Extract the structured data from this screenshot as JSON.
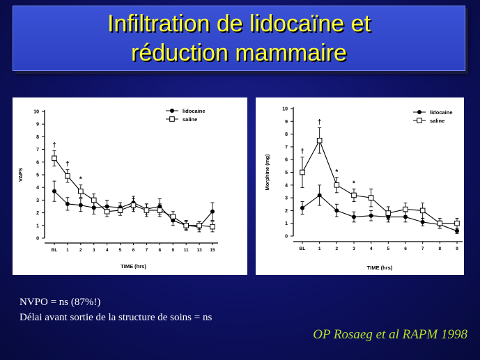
{
  "slide": {
    "title_line1": "Infiltration de lidocaïne et",
    "title_line2": "réduction mammaire",
    "note1": "NVPO = ns (87%!)",
    "note2": "Délai avant sortie de la structure de soins = ns",
    "citation": "OP Rosaeg et al RAPM 1998",
    "colors": {
      "background": "#0d1060",
      "title_box": "#2c40c2",
      "title_text": "#ffff33",
      "citation": "#b8e02a"
    }
  },
  "chart_data": [
    {
      "type": "line",
      "xlabel": "TIME (hrs)",
      "ylabel": "VAPS",
      "ylim": [
        0,
        10
      ],
      "yticks": [
        "0",
        "1",
        "2",
        "3",
        "4",
        "5",
        "6",
        "7",
        "8",
        "9",
        "10"
      ],
      "categories": [
        "BL",
        "1",
        "2",
        "3",
        "4",
        "5",
        "6",
        "7",
        "8",
        "9",
        "11",
        "13",
        "15"
      ],
      "legend_position": "top-right",
      "grid": false,
      "series": [
        {
          "name": "lidocaine",
          "marker": "filled-circle",
          "values": [
            3.7,
            2.7,
            2.6,
            2.4,
            2.5,
            2.4,
            2.8,
            2.3,
            2.5,
            1.4,
            1.0,
            0.9,
            2.1
          ],
          "errors": [
            0.8,
            0.5,
            0.5,
            0.5,
            0.5,
            0.4,
            0.5,
            0.4,
            0.6,
            0.4,
            0.4,
            0.4,
            0.7
          ]
        },
        {
          "name": "saline",
          "marker": "open-square",
          "values": [
            6.3,
            4.9,
            3.7,
            3.0,
            2.1,
            2.2,
            2.6,
            2.2,
            2.2,
            1.7,
            1.0,
            1.0,
            0.9
          ],
          "errors": [
            0.6,
            0.5,
            0.5,
            0.5,
            0.4,
            0.4,
            0.5,
            0.5,
            0.5,
            0.4,
            0.3,
            0.3,
            0.4
          ]
        }
      ],
      "annotations": [
        {
          "category": "BL",
          "text": "†"
        },
        {
          "category": "1",
          "text": "†"
        },
        {
          "category": "2",
          "text": "*"
        }
      ]
    },
    {
      "type": "line",
      "xlabel": "TIME (hrs)",
      "ylabel": "Morphine (mg)",
      "ylim": [
        0,
        10
      ],
      "yticks": [
        "0",
        "1",
        "2",
        "3",
        "4",
        "5",
        "6",
        "7",
        "8",
        "9",
        "10"
      ],
      "categories": [
        "BL",
        "1",
        "2",
        "3",
        "4",
        "5",
        "6",
        "7",
        "8",
        "9"
      ],
      "legend_position": "top-right",
      "grid": false,
      "series": [
        {
          "name": "lidocaine",
          "marker": "filled-circle",
          "values": [
            2.2,
            3.2,
            2.0,
            1.5,
            1.6,
            1.5,
            1.5,
            1.1,
            0.9,
            0.4
          ],
          "errors": [
            0.5,
            0.8,
            0.5,
            0.4,
            0.4,
            0.4,
            0.4,
            0.3,
            0.3,
            0.2
          ]
        },
        {
          "name": "saline",
          "marker": "open-square",
          "values": [
            5.0,
            7.5,
            4.0,
            3.2,
            3.0,
            1.8,
            2.1,
            2.0,
            1.0,
            1.0
          ],
          "errors": [
            1.2,
            1.0,
            0.6,
            0.5,
            0.7,
            0.5,
            0.5,
            0.6,
            0.4,
            0.4
          ]
        }
      ],
      "annotations": [
        {
          "category": "BL",
          "text": "†"
        },
        {
          "category": "1",
          "text": "†"
        },
        {
          "category": "2",
          "text": "*"
        },
        {
          "category": "3",
          "text": "*"
        }
      ]
    }
  ]
}
